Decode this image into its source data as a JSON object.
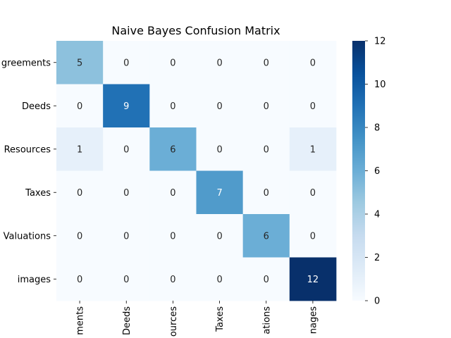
{
  "chart_data": {
    "type": "heatmap",
    "title": "Naive Bayes Confusion Matrix",
    "row_labels": [
      "greements",
      "Deeds",
      "Resources",
      "Taxes",
      "Valuations",
      "images"
    ],
    "col_labels": [
      "ments",
      "Deeds",
      "ources",
      "Taxes",
      "ations",
      "nages"
    ],
    "values": [
      [
        5,
        0,
        0,
        0,
        0,
        0
      ],
      [
        0,
        9,
        0,
        0,
        0,
        0
      ],
      [
        1,
        0,
        6,
        0,
        0,
        1
      ],
      [
        0,
        0,
        0,
        7,
        0,
        0
      ],
      [
        0,
        0,
        0,
        0,
        6,
        0
      ],
      [
        0,
        0,
        0,
        0,
        0,
        12
      ]
    ],
    "colorbar": {
      "min": 0,
      "max": 12,
      "ticks": [
        0,
        2,
        4,
        6,
        8,
        10,
        12
      ]
    },
    "colormap": [
      "#f7fbff",
      "#deebf7",
      "#c6dbef",
      "#9ecae1",
      "#6baed6",
      "#4292c6",
      "#2171b5",
      "#08519c",
      "#08306b"
    ]
  }
}
